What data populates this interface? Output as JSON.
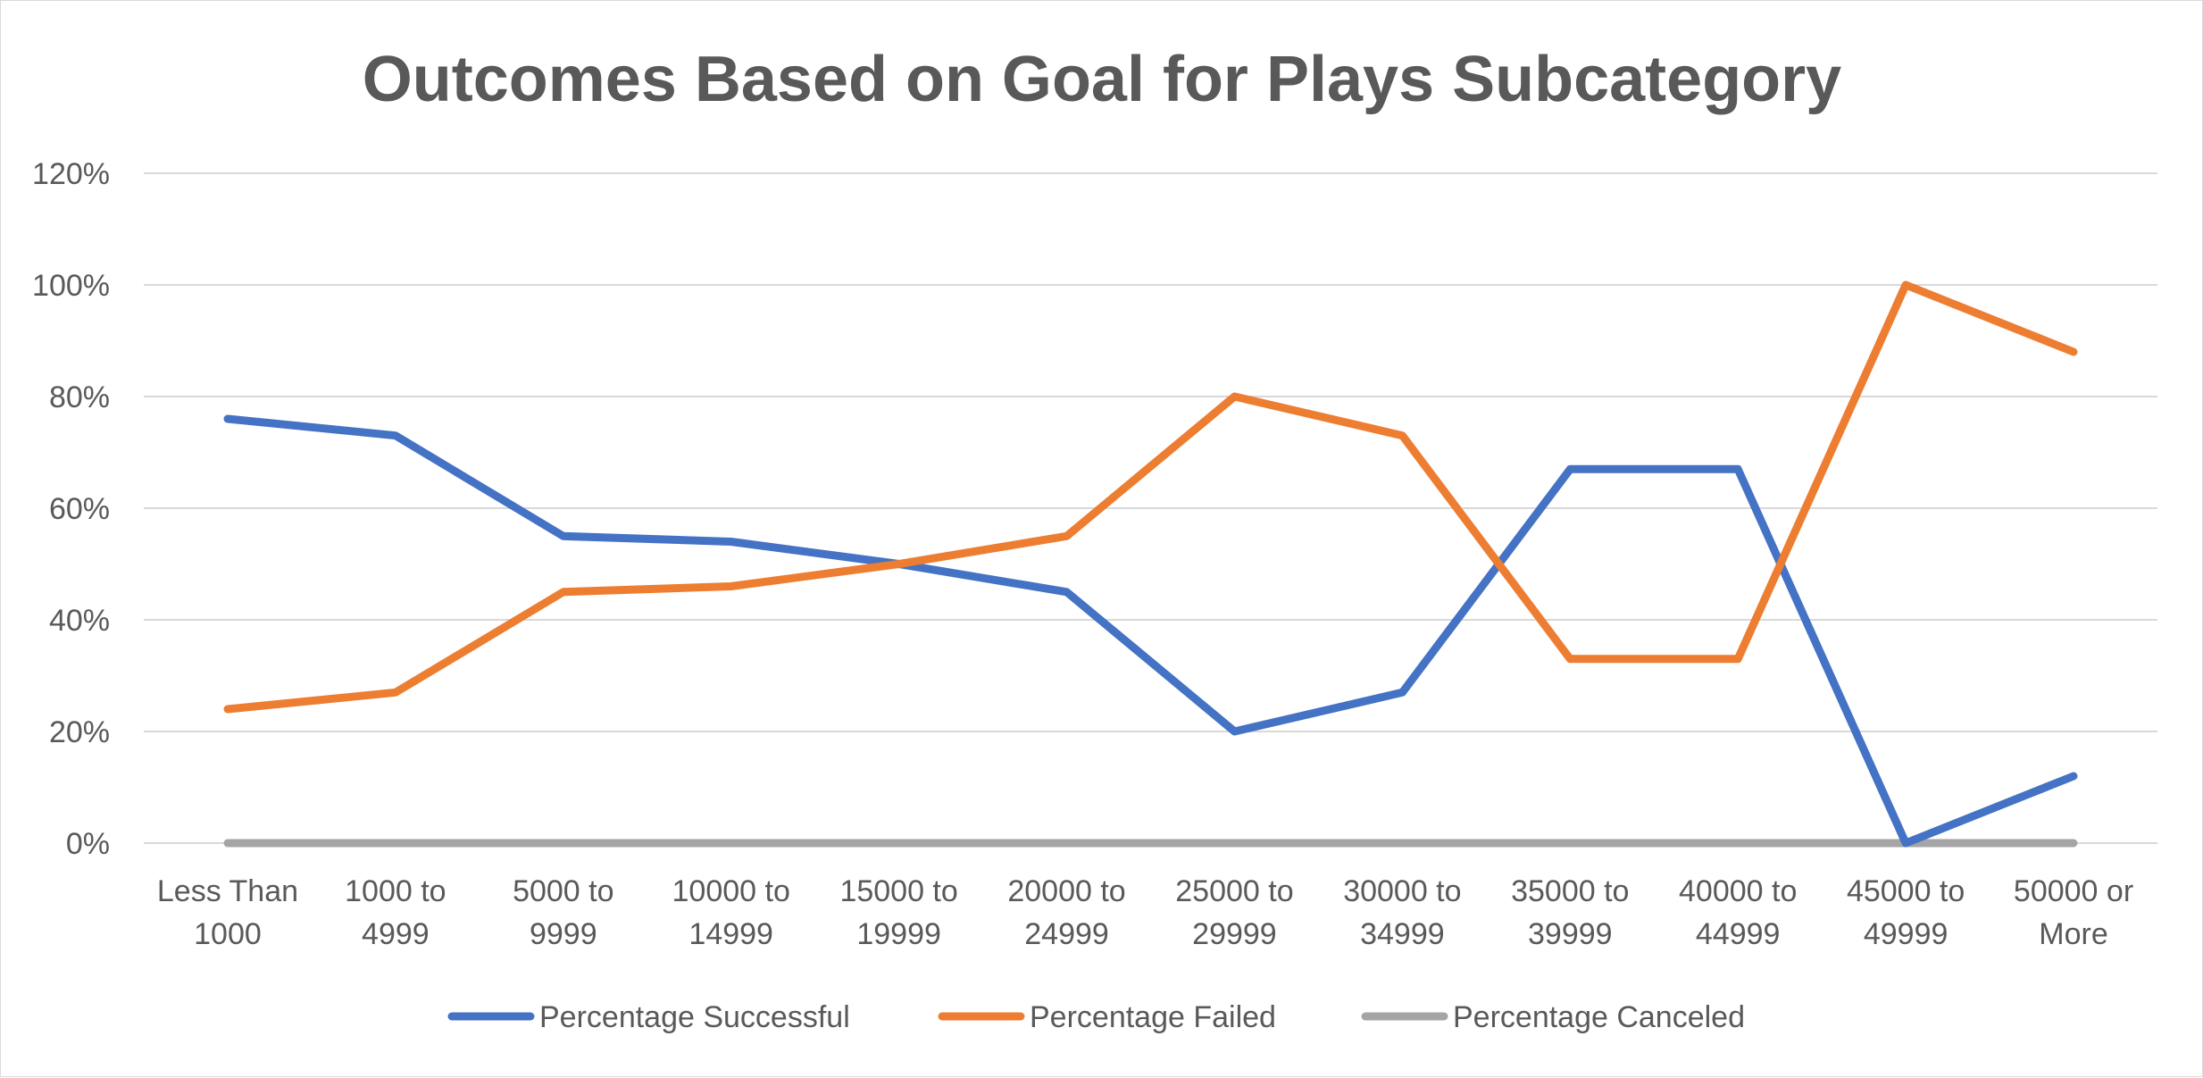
{
  "chart_data": {
    "type": "line",
    "title": "Outcomes Based on Goal for Plays Subcategory",
    "xlabel": "",
    "ylabel": "",
    "categories": [
      [
        "Less Than",
        "1000"
      ],
      [
        "1000 to",
        "4999"
      ],
      [
        "5000 to",
        "9999"
      ],
      [
        "10000 to",
        "14999"
      ],
      [
        "15000 to",
        "19999"
      ],
      [
        "20000 to",
        "24999"
      ],
      [
        "25000 to",
        "29999"
      ],
      [
        "30000 to",
        "34999"
      ],
      [
        "35000 to",
        "39999"
      ],
      [
        "40000 to",
        "44999"
      ],
      [
        "45000 to",
        "49999"
      ],
      [
        "50000 or",
        "More"
      ]
    ],
    "ylim": [
      0,
      1.2
    ],
    "yticks": [
      {
        "value": 0,
        "label": "0%"
      },
      {
        "value": 0.2,
        "label": "20%"
      },
      {
        "value": 0.4,
        "label": "40%"
      },
      {
        "value": 0.6,
        "label": "60%"
      },
      {
        "value": 0.8,
        "label": "80%"
      },
      {
        "value": 1.0,
        "label": "100%"
      },
      {
        "value": 1.2,
        "label": "120%"
      }
    ],
    "grid": true,
    "legend_position": "bottom",
    "series": [
      {
        "name": "Percentage Successful",
        "color": "#4472C4",
        "values": [
          0.76,
          0.73,
          0.55,
          0.54,
          0.5,
          0.45,
          0.2,
          0.27,
          0.67,
          0.67,
          0.0,
          0.12
        ]
      },
      {
        "name": "Percentage Failed",
        "color": "#ED7D31",
        "values": [
          0.24,
          0.27,
          0.45,
          0.46,
          0.5,
          0.55,
          0.8,
          0.73,
          0.33,
          0.33,
          1.0,
          0.88
        ]
      },
      {
        "name": "Percentage Canceled",
        "color": "#A5A5A5",
        "values": [
          0,
          0,
          0,
          0,
          0,
          0,
          0,
          0,
          0,
          0,
          0,
          0
        ]
      }
    ]
  }
}
